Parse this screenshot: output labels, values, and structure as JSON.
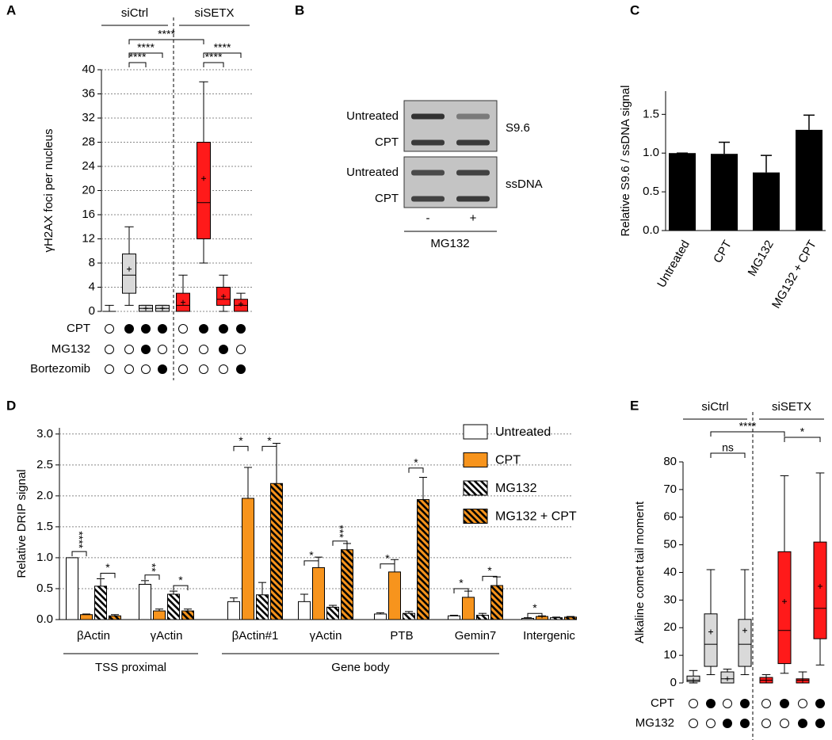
{
  "chart_data": [
    {
      "type": "box",
      "panel_label": "A",
      "y_label": "γH2AX foci per nucleus",
      "ylim": [
        0,
        40
      ],
      "yticks": [
        0,
        4,
        8,
        12,
        16,
        20,
        24,
        28,
        32,
        36,
        40
      ],
      "grid": true,
      "series": [
        {
          "name": "siCtrl",
          "color": "#d9d9d9",
          "boxes": [
            {
              "min": 0,
              "q1": 0,
              "median": 0,
              "q3": 0,
              "max": 1
            },
            {
              "min": 1,
              "q1": 3,
              "median": 6,
              "q3": 9.5,
              "max": 14,
              "mean": 7
            },
            {
              "min": 0,
              "q1": 0,
              "median": 0.5,
              "q3": 1,
              "max": 1,
              "mean": 0.5
            },
            {
              "min": 0,
              "q1": 0,
              "median": 0.5,
              "q3": 1,
              "max": 1,
              "mean": 0.5
            }
          ]
        },
        {
          "name": "siSETX",
          "color": "#ff1a1a",
          "boxes": [
            {
              "min": 0,
              "q1": 0,
              "median": 1,
              "q3": 3,
              "max": 6,
              "mean": 1.5
            },
            {
              "min": 8,
              "q1": 12,
              "median": 18,
              "q3": 28,
              "max": 38,
              "mean": 22
            },
            {
              "min": 0,
              "q1": 1,
              "median": 2,
              "q3": 4,
              "max": 6,
              "mean": 2.5
            },
            {
              "min": 0,
              "q1": 0,
              "median": 1,
              "q3": 2,
              "max": 3,
              "mean": 1.2
            }
          ]
        }
      ],
      "conditions": [
        {
          "name": "CPT",
          "values": [
            0,
            1,
            1,
            1,
            0,
            1,
            1,
            1
          ]
        },
        {
          "name": "MG132",
          "values": [
            0,
            0,
            1,
            0,
            0,
            0,
            1,
            0
          ]
        },
        {
          "name": "Bortezomib",
          "values": [
            0,
            0,
            0,
            1,
            0,
            0,
            0,
            1
          ]
        }
      ],
      "annotations": [
        "****",
        "****",
        "****",
        "****",
        "****"
      ]
    },
    {
      "type": "blot",
      "panel_label": "B",
      "panels": [
        {
          "name": "S9.6",
          "rows": [
            "Untreated",
            "CPT"
          ]
        },
        {
          "name": "ssDNA",
          "rows": [
            "Untreated",
            "CPT"
          ]
        }
      ],
      "lanes": [
        "-",
        "+"
      ],
      "lane_label": "MG132"
    },
    {
      "type": "bar",
      "panel_label": "C",
      "y_label": "Relative S9.6 / ssDNA signal",
      "categories": [
        "Untreated",
        "CPT",
        "MG132",
        "MG132 + CPT"
      ],
      "values": [
        1.0,
        0.99,
        0.75,
        1.3
      ],
      "errors": [
        0,
        0.15,
        0.22,
        0.19
      ],
      "color": "#000000",
      "ylim": [
        0,
        1.8
      ],
      "yticks": [
        {
          "value": 0,
          "label": "0.0"
        },
        0.5,
        {
          "value": 1,
          "label": "1.0"
        },
        1.5
      ]
    },
    {
      "type": "grouped_bar",
      "panel_label": "D",
      "y_label": "Relative DRIP signal",
      "grid": true,
      "categories": [
        "βActin",
        "γActin",
        "βActin#1",
        "γActin",
        "PTB",
        "Gemin7",
        "Intergenic"
      ],
      "category_groups": [
        "TSS proximal",
        "Gene body"
      ],
      "series": [
        {
          "name": "Untreated",
          "color": "#ffffff",
          "hatch": false,
          "values": [
            1.0,
            0.57,
            0.29,
            0.29,
            0.09,
            0.06,
            0.02
          ],
          "errors": [
            0,
            0.06,
            0.06,
            0.12,
            0.02,
            0.01,
            0.01
          ]
        },
        {
          "name": "CPT",
          "color": "#f7941d",
          "hatch": false,
          "values": [
            0.08,
            0.14,
            1.96,
            0.84,
            0.77,
            0.36,
            0.05
          ],
          "errors": [
            0.01,
            0.03,
            0.5,
            0.17,
            0.2,
            0.1,
            0.01
          ]
        },
        {
          "name": "MG132",
          "color": "#ffffff",
          "hatch": true,
          "values": [
            0.54,
            0.41,
            0.4,
            0.2,
            0.1,
            0.07,
            0.03
          ],
          "errors": [
            0.12,
            0.05,
            0.2,
            0.03,
            0.03,
            0.03,
            0.01
          ]
        },
        {
          "name": "MG132 + CPT",
          "color": "#f7941d",
          "hatch": true,
          "values": [
            0.06,
            0.14,
            2.2,
            1.13,
            1.94,
            0.55,
            0.04
          ],
          "errors": [
            0.02,
            0.03,
            0.65,
            0.1,
            0.36,
            0.14,
            0.01
          ]
        }
      ],
      "ylim": [
        0,
        3.1
      ],
      "yticks": [
        {
          "value": 0,
          "label": "0.0"
        },
        0.5,
        {
          "value": 1,
          "label": "1.0"
        },
        1.5,
        {
          "value": 2,
          "label": "2.0"
        },
        2.5,
        {
          "value": 3,
          "label": "3.0"
        }
      ],
      "annotations": [
        "****",
        "*",
        "**",
        "*",
        "*",
        "*",
        "*",
        "***",
        "*",
        "*",
        "*",
        "*",
        "*"
      ]
    },
    {
      "type": "box",
      "panel_label": "E",
      "y_label": "Alkaline comet tail moment",
      "ylim": [
        0,
        80
      ],
      "yticks": [
        0,
        10,
        20,
        30,
        40,
        50,
        60,
        70,
        80
      ],
      "grid": false,
      "series": [
        {
          "name": "siCtrl",
          "color": "#d9d9d9",
          "boxes": [
            {
              "min": 0,
              "q1": 0.5,
              "median": 1,
              "q3": 2.5,
              "max": 4.5,
              "mean": 1
            },
            {
              "min": 3,
              "q1": 6,
              "median": 14,
              "q3": 25,
              "max": 41,
              "mean": 18.5
            },
            {
              "min": 0,
              "q1": 0,
              "median": 1.5,
              "q3": 4,
              "max": 5,
              "mean": 1.5
            },
            {
              "min": 3,
              "q1": 6,
              "median": 14,
              "q3": 23,
              "max": 41,
              "mean": 19
            }
          ]
        },
        {
          "name": "siSETX",
          "color": "#ff1a1a",
          "boxes": [
            {
              "min": 0,
              "q1": 0,
              "median": 1,
              "q3": 2,
              "max": 3,
              "mean": 1
            },
            {
              "min": 3.5,
              "q1": 7,
              "median": 19,
              "q3": 47.5,
              "max": 75,
              "mean": 29.5
            },
            {
              "min": 0,
              "q1": 0,
              "median": 1,
              "q3": 1.5,
              "max": 4,
              "mean": 1
            },
            {
              "min": 6.5,
              "q1": 16,
              "median": 27,
              "q3": 51,
              "max": 76,
              "mean": 35
            }
          ]
        }
      ],
      "conditions": [
        {
          "name": "CPT",
          "values": [
            0,
            1,
            0,
            1,
            0,
            1,
            0,
            1
          ]
        },
        {
          "name": "MG132",
          "values": [
            0,
            0,
            1,
            1,
            0,
            0,
            1,
            1
          ]
        }
      ],
      "annotations": [
        "****",
        "ns",
        "*"
      ]
    }
  ]
}
